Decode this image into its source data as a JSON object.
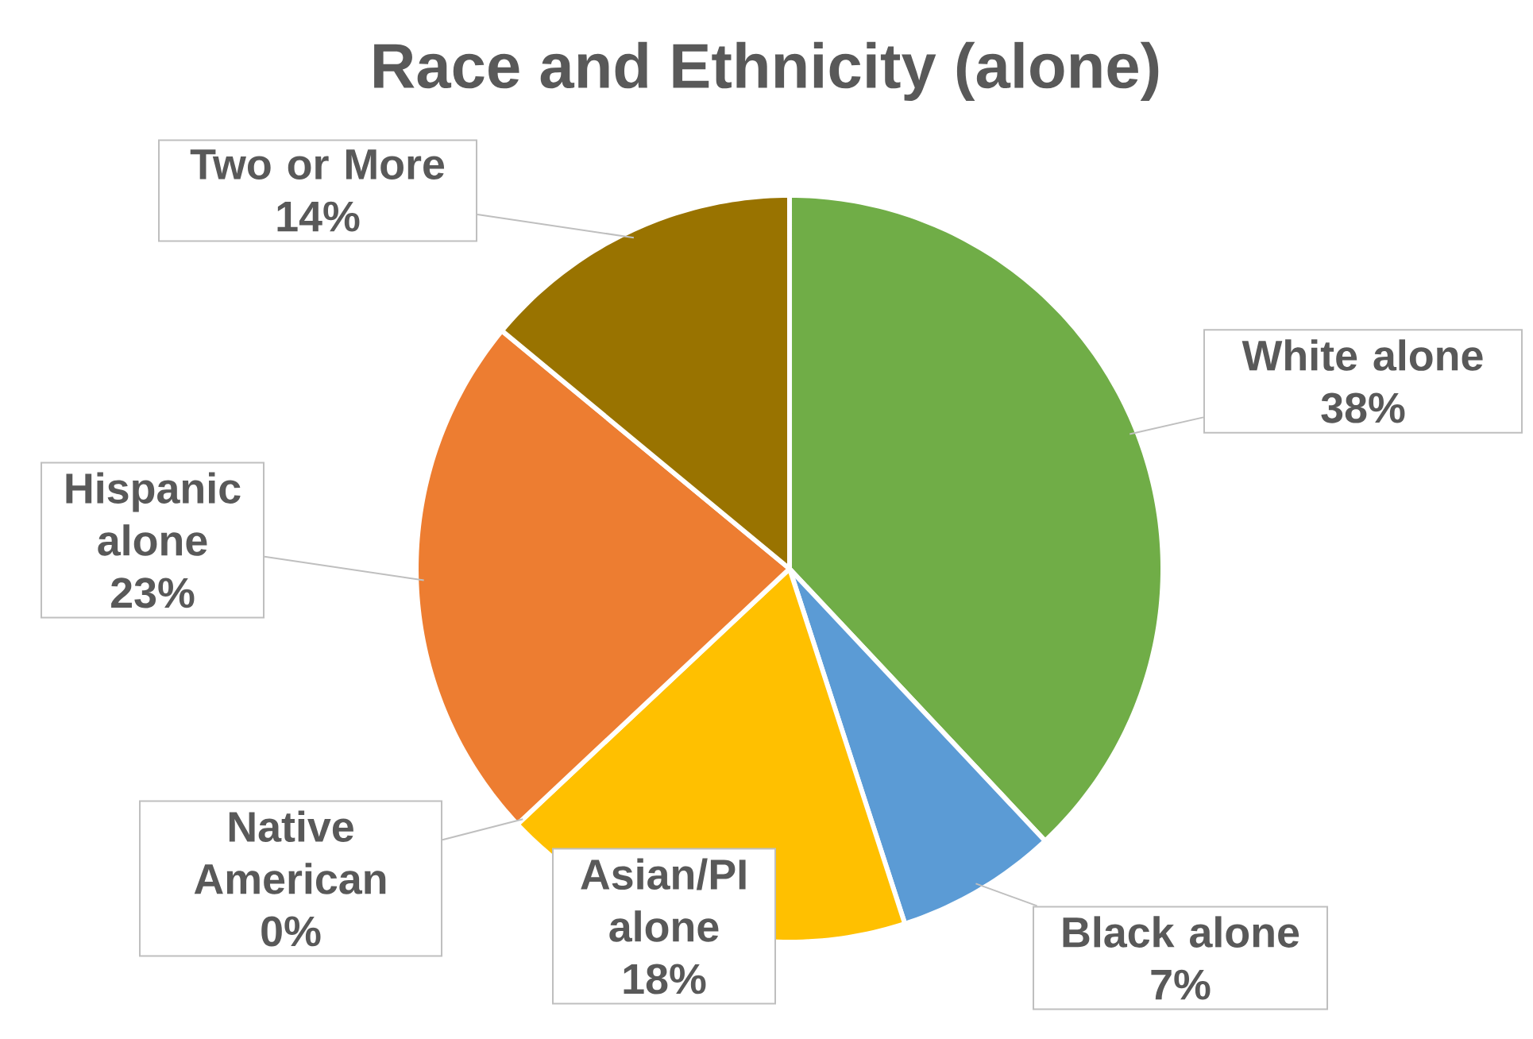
{
  "chart_data": {
    "type": "pie",
    "title": "Race and Ethnicity (alone)",
    "categories": [
      "White alone",
      "Black alone",
      "Asian/PI alone",
      "Native American",
      "Hispanic alone",
      "Two or More"
    ],
    "values": [
      38,
      7,
      18,
      0,
      23,
      14
    ],
    "value_labels": [
      "38%",
      "7%",
      "18%",
      "0%",
      "23%",
      "14%"
    ],
    "colors": [
      "#70ad47",
      "#5b9bd5",
      "#ffc000",
      "#44546a",
      "#ed7d31",
      "#997300"
    ]
  }
}
